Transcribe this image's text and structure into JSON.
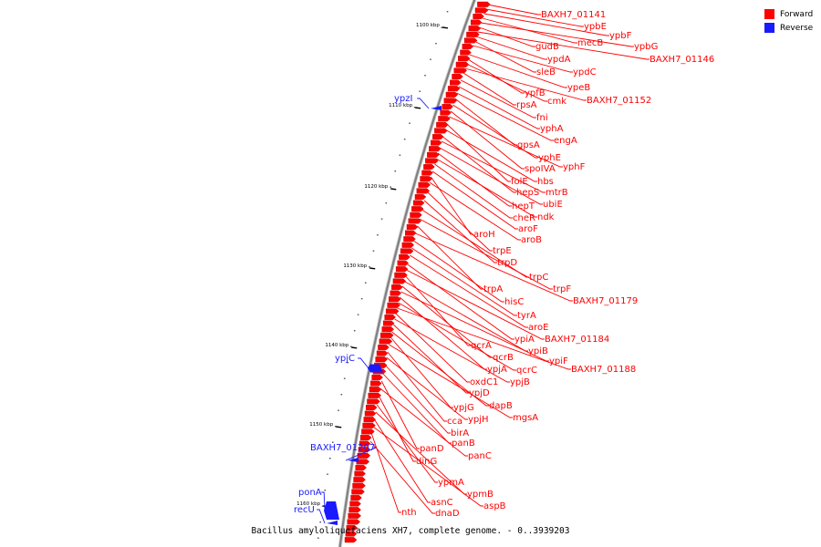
{
  "caption": "Bacillus amyloliquefaciens XH7, complete genome. - 0..3939203",
  "legend": [
    {
      "label": "Forward",
      "color": "#ff0000"
    },
    {
      "label": "Reverse",
      "color": "#1a1aff"
    }
  ],
  "colors": {
    "forward": "#ff0000",
    "reverse": "#1a1aff",
    "backbone": "#808080"
  },
  "ticks": [
    "1100 kbp",
    "1110 kbp",
    "1120 kbp",
    "1130 kbp",
    "1140 kbp",
    "1150 kbp",
    "1160 kbp"
  ],
  "forward_genes": [
    "BAXH7_01141",
    "ypbE",
    "ypbF",
    "mecB",
    "ypbG",
    "gudB",
    "BAXH7_01146",
    "ypdA",
    "sleB",
    "ypdC",
    "ypeB",
    "ypfB",
    "cmk",
    "BAXH7_01152",
    "rpsA",
    "fni",
    "yphA",
    "engA",
    "gpsA",
    "yphE",
    "spoIVA",
    "yphF",
    "folE",
    "hbs",
    "hepS",
    "mtrB",
    "ubiE",
    "hepT",
    "ndk",
    "cheR",
    "aroF",
    "aroH",
    "aroB",
    "trpE",
    "trpD",
    "trpC",
    "trpF",
    "trpA",
    "BAXH7_01179",
    "hisC",
    "tyrA",
    "aroE",
    "ypiA",
    "BAXH7_01184",
    "qcrA",
    "ypiB",
    "qcrB",
    "ypiF",
    "ypjA",
    "qcrC",
    "BAXH7_01188",
    "oxdC1",
    "ypjB",
    "ypjD",
    "dapB",
    "ypjG",
    "mgsA",
    "cca",
    "ypjH",
    "birA",
    "panB",
    "panD",
    "panC",
    "dinG",
    "ypmA",
    "ypmB",
    "asnC",
    "aspB",
    "nth",
    "dnaD"
  ],
  "reverse_genes": [
    "ypzI",
    "ypjC",
    "BAXH7_01207",
    "ponA",
    "recU"
  ]
}
